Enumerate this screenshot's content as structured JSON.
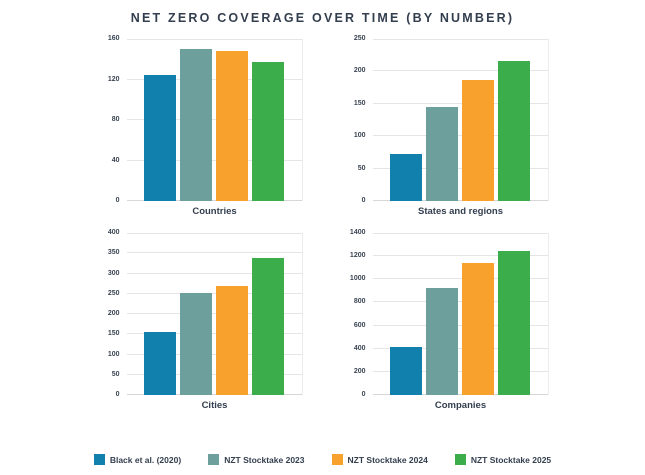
{
  "title": "NET ZERO COVERAGE OVER TIME (BY NUMBER)",
  "colors": {
    "blue": "#1280ad",
    "gray_teal": "#6d9f9c",
    "orange": "#f8a12c",
    "green": "#3bad4a",
    "text": "#333e4e",
    "gridline": "#e5e5e5"
  },
  "legend": {
    "items": [
      {
        "label": "Black et al. (2020)",
        "color": "#1280ad"
      },
      {
        "label": "NZT Stocktake 2023",
        "color": "#6d9f9c"
      },
      {
        "label": "NZT Stocktake 2024",
        "color": "#f8a12c"
      },
      {
        "label": "NZT Stocktake 2025",
        "color": "#3bad4a"
      }
    ]
  },
  "chart_data": [
    {
      "type": "bar",
      "title": "Countries",
      "categories": [
        "Black et al. (2020)",
        "NZT Stocktake 2023",
        "NZT Stocktake 2024",
        "NZT Stocktake 2025"
      ],
      "values": [
        124,
        150,
        148,
        137
      ],
      "xlabel": "Countries",
      "ylabel": "",
      "ylim": [
        0,
        160
      ],
      "yticks": [
        0,
        40,
        80,
        120,
        160
      ],
      "grid": true,
      "legend_position": "bottom"
    },
    {
      "type": "bar",
      "title": "States and regions",
      "categories": [
        "Black et al. (2020)",
        "NZT Stocktake 2023",
        "NZT Stocktake 2024",
        "NZT Stocktake 2025"
      ],
      "values": [
        73,
        145,
        186,
        216
      ],
      "xlabel": "States and regions",
      "ylabel": "",
      "ylim": [
        0,
        250
      ],
      "yticks": [
        0,
        50,
        100,
        150,
        200,
        250
      ],
      "grid": true,
      "legend_position": "bottom"
    },
    {
      "type": "bar",
      "title": "Cities",
      "categories": [
        "Black et al. (2020)",
        "NZT Stocktake 2023",
        "NZT Stocktake 2024",
        "NZT Stocktake 2025"
      ],
      "values": [
        155,
        251,
        270,
        338
      ],
      "xlabel": "Cities",
      "ylabel": "",
      "ylim": [
        0,
        400
      ],
      "yticks": [
        0,
        50,
        100,
        150,
        200,
        250,
        300,
        350,
        400
      ],
      "grid": true,
      "legend_position": "bottom"
    },
    {
      "type": "bar",
      "title": "Companies",
      "categories": [
        "Black et al. (2020)",
        "NZT Stocktake 2023",
        "NZT Stocktake 2024",
        "NZT Stocktake 2025"
      ],
      "values": [
        417,
        929,
        1145,
        1245
      ],
      "xlabel": "Companies",
      "ylabel": "",
      "ylim": [
        0,
        1400
      ],
      "yticks": [
        0,
        200,
        400,
        600,
        800,
        1000,
        1200,
        1400
      ],
      "grid": true,
      "legend_position": "bottom"
    }
  ]
}
